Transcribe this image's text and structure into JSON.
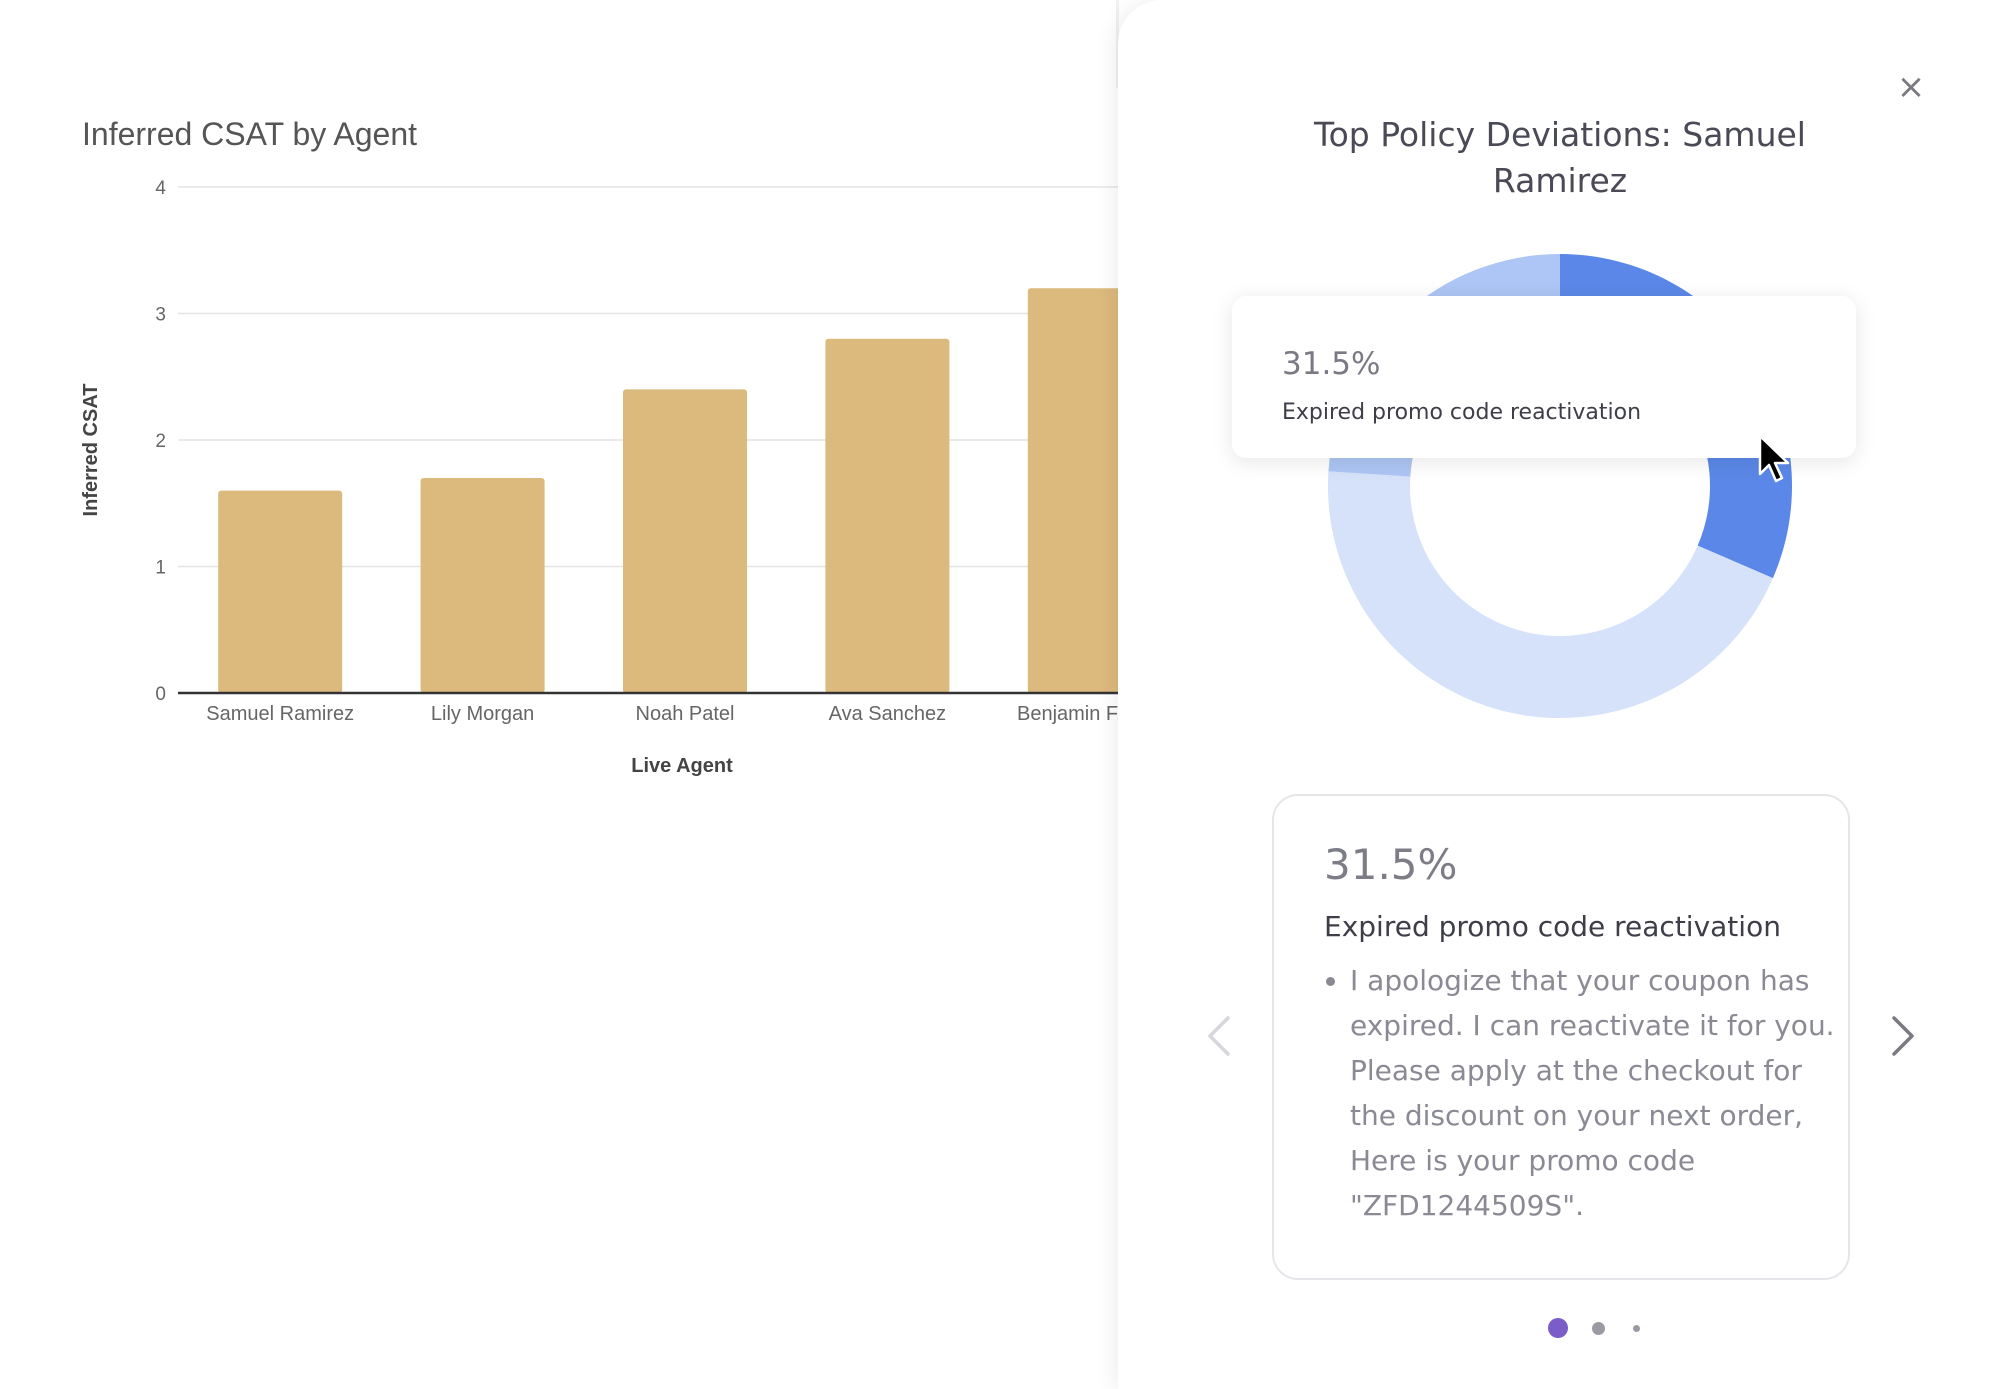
{
  "bar_chart": {
    "title": "Inferred CSAT by Agent",
    "colors": {
      "bar": "#dcb97d",
      "axis": "#333333",
      "grid": "#e4e4e4",
      "text": "#666666"
    },
    "chart_data": {
      "type": "bar",
      "title": "Inferred CSAT by Agent",
      "xlabel": "Live Agent",
      "ylabel": "Inferred CSAT",
      "categories": [
        "Samuel Ramirez",
        "Lily Morgan",
        "Noah Patel",
        "Ava Sanchez",
        "Benjamin Foster"
      ],
      "values": [
        1.6,
        1.7,
        2.4,
        2.8,
        3.2
      ],
      "ylim": [
        0,
        4
      ],
      "yticks": [
        0,
        1,
        2,
        3,
        4
      ],
      "grid": true,
      "legend": "none"
    }
  },
  "drawer": {
    "close_icon": "close-icon",
    "title": "Top Policy Deviations: Samuel Ramirez",
    "donut": {
      "type": "pie",
      "variant": "donut",
      "segments": [
        {
          "label": "Expired promo code reactivation",
          "value": 31.5,
          "color": "#5b88e8"
        },
        {
          "label": "",
          "value": 44.5,
          "color": "#d5e2fa"
        },
        {
          "label": "",
          "value": 24.0,
          "color": "#aec6f5"
        }
      ]
    },
    "tooltip": {
      "value": "31.5%",
      "label": "Expired promo code reactivation"
    },
    "card": {
      "value": "31.5%",
      "title": "Expired promo code reactivation",
      "items": [
        "I apologize that your coupon has expired. I can reactivate it for you. Please apply at the checkout for the discount on your next order, Here is your promo code \"ZFD1244509S\"."
      ]
    },
    "prev_icon": "chevron-left-icon",
    "next_icon": "chevron-right-icon",
    "pagination": {
      "total": 3,
      "active": 0,
      "active_color": "#7b5cc9",
      "inactive_color": "#9a9aa2"
    }
  }
}
